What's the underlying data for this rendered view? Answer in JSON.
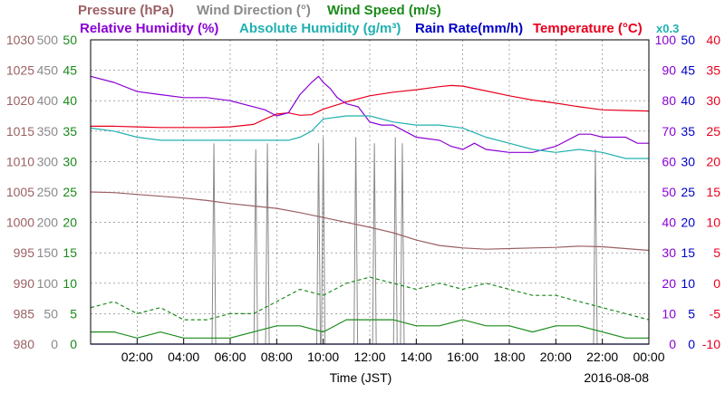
{
  "chart_data": {
    "type": "line",
    "date": "2016-08-08",
    "xlabel": "Time (JST)",
    "x_ticks": [
      "02:00",
      "04:00",
      "06:00",
      "08:00",
      "10:00",
      "12:00",
      "14:00",
      "16:00",
      "18:00",
      "20:00",
      "22:00",
      "00:00"
    ],
    "xlim_hours": [
      0,
      24
    ],
    "legend_row1": [
      {
        "text": "Pressure (hPa)",
        "color": "#9b6063"
      },
      {
        "text": "Wind Direction (°)",
        "color": "#8a8a8a"
      },
      {
        "text": "Wind Speed (m/s)",
        "color": "#1a8a1a"
      }
    ],
    "legend_row2": [
      {
        "text": "Relative Humidity (%)",
        "color": "#8a00d4"
      },
      {
        "text": "Absolute Humidity (g/m³)",
        "color": "#20b0b0"
      },
      {
        "text": "Rain Rate(mm/h)",
        "color": "#0000c8"
      },
      {
        "text": "Temperature (°C)",
        "color": "#e8001e"
      },
      {
        "text": "x0.3",
        "color": "#20b0b0"
      }
    ],
    "axes": {
      "pressure": {
        "min": 980,
        "max": 1030,
        "labels": [
          "1030",
          "1025",
          "1020",
          "1015",
          "1010",
          "1005",
          "1000",
          "995",
          "990",
          "985",
          "980"
        ],
        "color": "#9b6063"
      },
      "wind_dir": {
        "min": 0,
        "max": 500,
        "labels": [
          "500",
          "450",
          "400",
          "350",
          "300",
          "250",
          "200",
          "150",
          "100",
          "50",
          "0"
        ],
        "color": "#8a8a8a"
      },
      "wind_speed": {
        "min": 0,
        "max": 50,
        "labels": [
          "50",
          "45",
          "40",
          "35",
          "30",
          "25",
          "20",
          "15",
          "10",
          "5",
          "0"
        ],
        "color": "#1a8a1a"
      },
      "humidity": {
        "min": 0,
        "max": 100,
        "labels": [
          "100",
          "90",
          "80",
          "70",
          "60",
          "50",
          "40",
          "30",
          "20",
          "10",
          "0"
        ],
        "color": "#8a00d4"
      },
      "rain": {
        "min": 0,
        "max": 50,
        "labels": [
          "50",
          "45",
          "40",
          "35",
          "30",
          "25",
          "20",
          "15",
          "10",
          "5",
          "0"
        ],
        "color": "#0000c8"
      },
      "temp": {
        "min": -10,
        "max": 40,
        "labels": [
          "40",
          "35",
          "30",
          "25",
          "20",
          "15",
          "10",
          "5",
          "0",
          "-5",
          "-10"
        ],
        "color": "#e8001e"
      }
    },
    "series": [
      {
        "name": "Pressure (hPa)",
        "axis": "pressure",
        "color": "#9b6063",
        "x": [
          0,
          1,
          2,
          3,
          4,
          5,
          6,
          7,
          8,
          9,
          10,
          11,
          12,
          13,
          14,
          15,
          16,
          17,
          18,
          19,
          20,
          21,
          22,
          23,
          24
        ],
        "y": [
          1005,
          1004.9,
          1004.6,
          1004.3,
          1004,
          1003.6,
          1003.1,
          1002.7,
          1002.3,
          1001.6,
          1000.8,
          1000,
          999.2,
          998.3,
          997.1,
          996.2,
          995.8,
          995.6,
          995.7,
          995.8,
          995.9,
          996.1,
          996.0,
          995.7,
          995.4
        ]
      },
      {
        "name": "Temperature (°C)",
        "axis": "temp",
        "color": "#e8001e",
        "x": [
          0,
          1,
          2,
          3,
          4,
          5,
          6,
          7,
          7.5,
          8,
          8.5,
          9,
          9.5,
          10,
          11,
          12,
          13,
          14,
          15,
          15.5,
          16,
          17,
          18,
          19,
          20,
          21,
          22,
          23,
          24
        ],
        "y": [
          25.8,
          25.8,
          25.7,
          25.6,
          25.6,
          25.6,
          25.7,
          26.1,
          27.0,
          27.8,
          28.0,
          27.6,
          27.7,
          28.6,
          29.8,
          30.8,
          31.4,
          31.8,
          32.3,
          32.5,
          32.4,
          31.6,
          30.8,
          30.1,
          29.6,
          29.0,
          28.5,
          28.4,
          28.3
        ]
      },
      {
        "name": "Relative Humidity (%)",
        "axis": "humidity",
        "color": "#8a00d4",
        "x": [
          0,
          1,
          2,
          3,
          4,
          5,
          6,
          7,
          7.5,
          8,
          8.5,
          9,
          9.5,
          9.8,
          10,
          10.3,
          10.6,
          11,
          11.5,
          12,
          12.5,
          13,
          13.5,
          14,
          15,
          15.5,
          16,
          16.5,
          17,
          18,
          19,
          20,
          21,
          21.5,
          22,
          23,
          23.5,
          24
        ],
        "y": [
          88,
          86,
          83,
          82,
          81,
          81,
          80,
          78,
          77,
          75,
          76,
          82,
          86,
          88,
          86,
          84,
          81,
          79,
          78,
          73,
          72,
          72,
          70,
          68,
          67,
          65,
          64,
          66,
          64,
          63,
          63,
          65,
          69,
          69,
          68,
          68,
          66,
          66
        ]
      },
      {
        "name": "Absolute Humidity (g/m³)",
        "axis": "humidity",
        "color": "#20b0b0",
        "x": [
          0,
          1,
          2,
          3,
          4,
          5,
          6,
          7,
          8,
          8.5,
          9,
          9.5,
          10,
          11,
          12,
          13,
          14,
          15,
          16,
          17,
          18,
          19,
          20,
          21,
          22,
          23,
          24
        ],
        "y": [
          71,
          70,
          68,
          67,
          67,
          67,
          67,
          67,
          67,
          67,
          68,
          70,
          74,
          75,
          75,
          73,
          72,
          72,
          71,
          68,
          66,
          64,
          63,
          64,
          63,
          61,
          61
        ]
      },
      {
        "name": "Wind Speed (m/s) max",
        "axis": "wind_speed",
        "color": "#1a8a1a",
        "dashed": true,
        "x": [
          0,
          1,
          2,
          3,
          4,
          5,
          6,
          7,
          8,
          9,
          10,
          11,
          12,
          13,
          14,
          15,
          16,
          17,
          18,
          19,
          20,
          21,
          22,
          23,
          24
        ],
        "y": [
          6,
          7,
          5,
          6,
          4,
          4,
          5,
          5,
          7,
          9,
          8,
          10,
          11,
          10,
          9,
          10,
          9,
          10,
          9,
          8,
          8,
          7,
          6,
          5,
          4
        ]
      },
      {
        "name": "Wind Speed (m/s) avg",
        "axis": "wind_speed",
        "color": "#1a8a1a",
        "x": [
          0,
          1,
          2,
          3,
          4,
          5,
          6,
          7,
          8,
          9,
          10,
          11,
          12,
          13,
          14,
          15,
          16,
          17,
          18,
          19,
          20,
          21,
          22,
          23,
          24
        ],
        "y": [
          2,
          2,
          1,
          2,
          1,
          1,
          1,
          2,
          3,
          3,
          2,
          4,
          4,
          4,
          3,
          3,
          4,
          3,
          3,
          2,
          3,
          3,
          2,
          1,
          1
        ]
      },
      {
        "name": "Rain Rate(mm/h)",
        "axis": "rain",
        "color": "#0000c8",
        "x": [
          0,
          24
        ],
        "y": [
          0,
          0
        ]
      }
    ],
    "wind_direction_spikes": [
      {
        "x": 5.3,
        "y": 330
      },
      {
        "x": 7.1,
        "y": 320
      },
      {
        "x": 7.6,
        "y": 330
      },
      {
        "x": 9.8,
        "y": 330
      },
      {
        "x": 10.0,
        "y": 340
      },
      {
        "x": 11.4,
        "y": 340
      },
      {
        "x": 12.2,
        "y": 330
      },
      {
        "x": 13.1,
        "y": 340
      },
      {
        "x": 13.4,
        "y": 330
      },
      {
        "x": 21.7,
        "y": 320
      }
    ]
  }
}
